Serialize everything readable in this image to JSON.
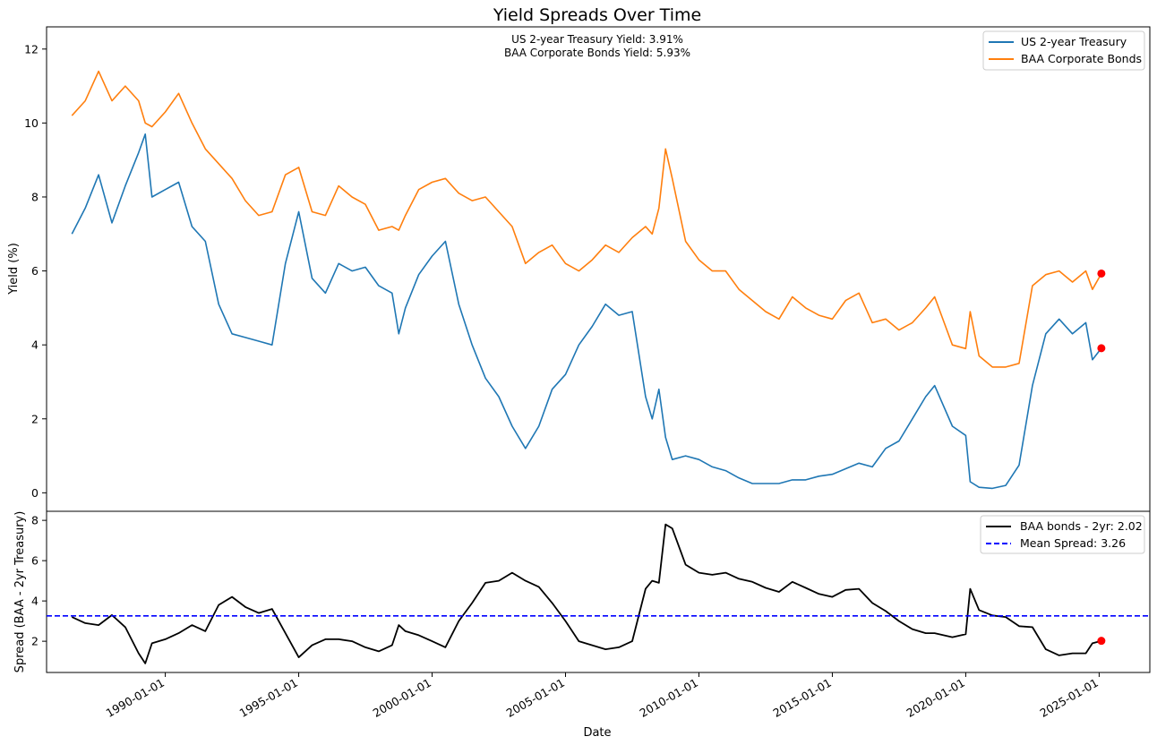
{
  "colors": {
    "treasury": "#1f77b4",
    "baa": "#ff7f0e",
    "spread": "#000000",
    "mean": "#0000ff",
    "marker": "#ff0000"
  },
  "chart_data": [
    {
      "type": "line",
      "title": "Yield Spreads Over Time",
      "xlabel": "",
      "ylabel": "Yield (%)",
      "ylim": [
        -0.5,
        12.6
      ],
      "yticks": [
        0,
        2,
        4,
        6,
        8,
        10,
        12
      ],
      "grid": false,
      "legend_position": "top-right",
      "annotation_lines": [
        "US 2-year Treasury Yield: 3.91%",
        "BAA Corporate Bonds Yield: 5.93%"
      ],
      "x": [
        "1986-07",
        "1987-01",
        "1987-07",
        "1988-01",
        "1988-07",
        "1989-01",
        "1989-04",
        "1989-07",
        "1990-01",
        "1990-07",
        "1991-01",
        "1991-07",
        "1992-01",
        "1992-07",
        "1993-01",
        "1993-07",
        "1994-01",
        "1994-07",
        "1995-01",
        "1995-07",
        "1996-01",
        "1996-07",
        "1997-01",
        "1997-07",
        "1998-01",
        "1998-07",
        "1998-10",
        "1999-01",
        "1999-07",
        "2000-01",
        "2000-07",
        "2001-01",
        "2001-07",
        "2002-01",
        "2002-07",
        "2003-01",
        "2003-07",
        "2004-01",
        "2004-07",
        "2005-01",
        "2005-07",
        "2006-01",
        "2006-07",
        "2007-01",
        "2007-07",
        "2008-01",
        "2008-04",
        "2008-07",
        "2008-10",
        "2009-01",
        "2009-07",
        "2010-01",
        "2010-07",
        "2011-01",
        "2011-07",
        "2012-01",
        "2012-07",
        "2013-01",
        "2013-07",
        "2014-01",
        "2014-07",
        "2015-01",
        "2015-07",
        "2016-01",
        "2016-07",
        "2017-01",
        "2017-07",
        "2018-01",
        "2018-07",
        "2018-11",
        "2019-07",
        "2020-01",
        "2020-03",
        "2020-07",
        "2021-01",
        "2021-07",
        "2022-01",
        "2022-07",
        "2023-01",
        "2023-07",
        "2024-01",
        "2024-07",
        "2024-10",
        "2025-02"
      ],
      "series": [
        {
          "name": "US 2-year Treasury",
          "color": "#1f77b4",
          "values": [
            7.0,
            7.7,
            8.6,
            7.3,
            8.3,
            9.2,
            9.7,
            8.0,
            8.2,
            8.4,
            7.2,
            6.8,
            5.1,
            4.3,
            4.2,
            4.1,
            4.0,
            6.2,
            7.6,
            5.8,
            5.4,
            6.2,
            6.0,
            6.1,
            5.6,
            5.4,
            4.3,
            5.0,
            5.9,
            6.4,
            6.8,
            5.1,
            4.0,
            3.1,
            2.6,
            1.8,
            1.2,
            1.8,
            2.8,
            3.2,
            4.0,
            4.5,
            5.1,
            4.8,
            4.9,
            2.6,
            2.0,
            2.8,
            1.5,
            0.9,
            1.0,
            0.9,
            0.7,
            0.6,
            0.4,
            0.25,
            0.25,
            0.25,
            0.35,
            0.35,
            0.45,
            0.5,
            0.65,
            0.8,
            0.7,
            1.2,
            1.4,
            2.0,
            2.6,
            2.9,
            1.8,
            1.55,
            0.3,
            0.15,
            0.12,
            0.2,
            0.75,
            2.9,
            4.3,
            4.7,
            4.3,
            4.6,
            3.6,
            3.91
          ]
        },
        {
          "name": "BAA Corporate Bonds",
          "color": "#ff7f0e",
          "values": [
            10.2,
            10.6,
            11.4,
            10.6,
            11.0,
            10.6,
            10.0,
            9.9,
            10.3,
            10.8,
            10.0,
            9.3,
            8.9,
            8.5,
            7.9,
            7.5,
            7.6,
            8.6,
            8.8,
            7.6,
            7.5,
            8.3,
            8.0,
            7.8,
            7.1,
            7.2,
            7.1,
            7.5,
            8.2,
            8.4,
            8.5,
            8.1,
            7.9,
            8.0,
            7.6,
            7.2,
            6.2,
            6.5,
            6.7,
            6.2,
            6.0,
            6.3,
            6.7,
            6.5,
            6.9,
            7.2,
            7.0,
            7.7,
            9.3,
            8.5,
            6.8,
            6.3,
            6.0,
            6.0,
            5.5,
            5.2,
            4.9,
            4.7,
            5.3,
            5.0,
            4.8,
            4.7,
            5.2,
            5.4,
            4.6,
            4.7,
            4.4,
            4.6,
            5.0,
            5.3,
            4.0,
            3.9,
            4.9,
            3.7,
            3.4,
            3.4,
            3.5,
            5.6,
            5.9,
            6.0,
            5.7,
            6.0,
            5.5,
            5.93
          ]
        }
      ],
      "highlights": [
        {
          "series": "US 2-year Treasury",
          "x": "2025-02",
          "y": 3.91
        },
        {
          "series": "BAA Corporate Bonds",
          "x": "2025-02",
          "y": 5.93
        }
      ]
    },
    {
      "type": "line",
      "xlabel": "Date",
      "ylabel": "Spread (BAA - 2yr Treasury)",
      "ylim": [
        0.45,
        8.45
      ],
      "yticks": [
        2,
        4,
        6,
        8
      ],
      "xticks": [
        "1990-01-01",
        "1995-01-01",
        "2000-01-01",
        "2005-01-01",
        "2010-01-01",
        "2015-01-01",
        "2020-01-01",
        "2025-01-01"
      ],
      "grid": false,
      "legend_position": "top-right",
      "x": [
        "1986-07",
        "1987-01",
        "1987-07",
        "1988-01",
        "1988-07",
        "1989-01",
        "1989-04",
        "1989-07",
        "1990-01",
        "1990-07",
        "1991-01",
        "1991-07",
        "1992-01",
        "1992-07",
        "1993-01",
        "1993-07",
        "1994-01",
        "1994-07",
        "1995-01",
        "1995-07",
        "1996-01",
        "1996-07",
        "1997-01",
        "1997-07",
        "1998-01",
        "1998-07",
        "1998-10",
        "1999-01",
        "1999-07",
        "2000-01",
        "2000-07",
        "2001-01",
        "2001-07",
        "2002-01",
        "2002-07",
        "2003-01",
        "2003-07",
        "2004-01",
        "2004-07",
        "2005-01",
        "2005-07",
        "2006-01",
        "2006-07",
        "2007-01",
        "2007-07",
        "2008-01",
        "2008-04",
        "2008-07",
        "2008-10",
        "2009-01",
        "2009-07",
        "2010-01",
        "2010-07",
        "2011-01",
        "2011-07",
        "2012-01",
        "2012-07",
        "2013-01",
        "2013-07",
        "2014-01",
        "2014-07",
        "2015-01",
        "2015-07",
        "2016-01",
        "2016-07",
        "2017-01",
        "2017-07",
        "2018-01",
        "2018-07",
        "2018-11",
        "2019-07",
        "2020-01",
        "2020-03",
        "2020-07",
        "2021-01",
        "2021-07",
        "2022-01",
        "2022-07",
        "2023-01",
        "2023-07",
        "2024-01",
        "2024-07",
        "2024-10",
        "2025-02"
      ],
      "series": [
        {
          "name": "BAA bonds - 2yr: 2.02",
          "color": "#000000",
          "values": [
            3.2,
            2.9,
            2.8,
            3.3,
            2.7,
            1.4,
            0.9,
            1.9,
            2.1,
            2.4,
            2.8,
            2.5,
            3.8,
            4.2,
            3.7,
            3.4,
            3.6,
            2.4,
            1.2,
            1.8,
            2.1,
            2.1,
            2.0,
            1.7,
            1.5,
            1.8,
            2.8,
            2.5,
            2.3,
            2.0,
            1.7,
            3.0,
            3.9,
            4.9,
            5.0,
            5.4,
            5.0,
            4.7,
            3.9,
            3.0,
            2.0,
            1.8,
            1.6,
            1.7,
            2.0,
            4.6,
            5.0,
            4.9,
            7.8,
            7.6,
            5.8,
            5.4,
            5.3,
            5.4,
            5.1,
            4.95,
            4.65,
            4.45,
            4.95,
            4.65,
            4.35,
            4.2,
            4.55,
            4.6,
            3.9,
            3.5,
            3.0,
            2.6,
            2.4,
            2.4,
            2.2,
            2.35,
            4.6,
            3.55,
            3.28,
            3.2,
            2.75,
            2.7,
            1.6,
            1.3,
            1.4,
            1.4,
            1.9,
            2.02
          ]
        },
        {
          "name": "Mean Spread: 3.26",
          "color": "#0000ff",
          "style": "dashed",
          "value": 3.26
        }
      ],
      "highlights": [
        {
          "series": "BAA bonds - 2yr: 2.02",
          "x": "2025-02",
          "y": 2.02
        }
      ]
    }
  ]
}
